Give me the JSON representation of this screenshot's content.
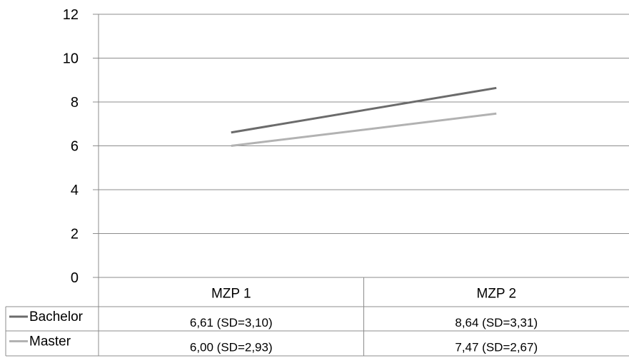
{
  "chart_data": {
    "type": "line",
    "categories": [
      "MZP 1",
      "MZP 2"
    ],
    "series": [
      {
        "name": "Bachelor",
        "values": [
          6.61,
          8.64
        ],
        "cells": [
          "6,61 (SD=3,10)",
          "8,64 (SD=3,31)"
        ],
        "color": "#6b6b6b"
      },
      {
        "name": "Master",
        "values": [
          6.0,
          7.47
        ],
        "cells": [
          "6,00 (SD=2,93)",
          "7,47 (SD=2,67)"
        ],
        "color": "#b2b2b2"
      }
    ],
    "yticks": [
      "0",
      "2",
      "4",
      "6",
      "8",
      "10",
      "12"
    ],
    "ylim": [
      0,
      12
    ],
    "grid": true,
    "legend": "data-table"
  }
}
